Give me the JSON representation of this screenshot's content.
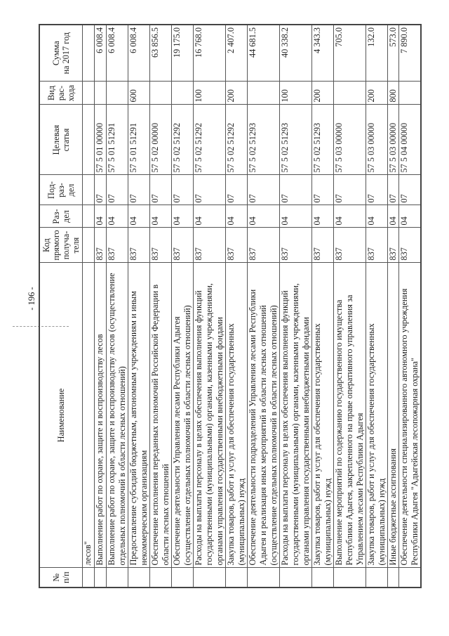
{
  "page_number": "- 196 -",
  "header": {
    "num": "№\nп/п",
    "name": "Наименование",
    "kod": "Код\nпрямого\nполуча-\nтеля",
    "razdel": "Раз-\nдел",
    "podrazdel": "Под-\nраз-\nдел",
    "celevaya": "Целевая\nстатья",
    "vid": "Вид\nрас-\nхода",
    "summa": "Сумма\nна 2017 год"
  },
  "rows": [
    {
      "num": "",
      "name": "лесов\"",
      "kod": "",
      "razdel": "",
      "podrazdel": "",
      "celevaya": "",
      "vid": "",
      "summa": ""
    },
    {
      "num": "",
      "name": "Выполнение работ по охране, защите и воспроизводству лесов",
      "kod": "837",
      "razdel": "04",
      "podrazdel": "07",
      "celevaya": "57 5 01 00000",
      "vid": "",
      "summa": "6 008.4"
    },
    {
      "num": "",
      "name": "Выполнение работ по охране, защите и воспроизводству лесов (осуществление\nотдельных полномочий в области лесных отношений)",
      "kod": "837",
      "razdel": "04",
      "podrazdel": "07",
      "celevaya": "57 5 01 51291",
      "vid": "",
      "summa": "6 008.4"
    },
    {
      "num": "",
      "name": "Предоставление субсидий бюджетным, автономным учреждениям и иным\nнекоммерческим организациям",
      "kod": "837",
      "razdel": "04",
      "podrazdel": "07",
      "celevaya": "57 5 01 51291",
      "vid": "600",
      "summa": "6 008.4"
    },
    {
      "num": "",
      "name": "Обеспечение исполнения переданных полномочий Российской Федерации в\nобласти лесных отношений",
      "kod": "837",
      "razdel": "04",
      "podrazdel": "07",
      "celevaya": "57 5 02 00000",
      "vid": "",
      "summa": "63 856.5"
    },
    {
      "num": "",
      "name": "Обеспечение деятельности Управления лесами Республики Адыгея\n(осуществление отдельных полномочий в области лесных отношений)",
      "kod": "837",
      "razdel": "04",
      "podrazdel": "07",
      "celevaya": "57 5 02 51292",
      "vid": "",
      "summa": "19 175.0"
    },
    {
      "num": "",
      "name": "Расходы на выплаты персоналу в целях обеспечения выполнения функций\nгосударственными (муниципальными) органами, казенными учреждениями,\nорганами управления государственными внебюджетными фондами",
      "kod": "837",
      "razdel": "04",
      "podrazdel": "07",
      "celevaya": "57 5 02 51292",
      "vid": "100",
      "summa": "16 768.0"
    },
    {
      "num": "",
      "name": "Закупка товаров, работ и услуг для обеспечения государственных\n(муниципальных) нужд",
      "kod": "837",
      "razdel": "04",
      "podrazdel": "07",
      "celevaya": "57 5 02 51292",
      "vid": "200",
      "summa": "2 407.0"
    },
    {
      "num": "",
      "name": "Обеспечение деятельности подразделений Управления лесами Республики\nАдыгея и реализация иных мероприятий в области лесных отношений\n(осуществление отдельных полномочий в области лесных отношений)",
      "kod": "837",
      "razdel": "04",
      "podrazdel": "07",
      "celevaya": "57 5 02 51293",
      "vid": "",
      "summa": "44 681.5"
    },
    {
      "num": "",
      "name": "Расходы на выплаты персоналу в целях обеспечения выполнения функций\nгосударственными (муниципальными) органами, казенными учреждениями,\nорганами управления государственными внебюджетными фондами",
      "kod": "837",
      "razdel": "04",
      "podrazdel": "07",
      "celevaya": "57 5 02 51293",
      "vid": "100",
      "summa": "40 338.2"
    },
    {
      "num": "",
      "name": "Закупка товаров, работ и услуг для обеспечения государственных\n(муниципальных) нужд",
      "kod": "837",
      "razdel": "04",
      "podrazdel": "07",
      "celevaya": "57 5 02 51293",
      "vid": "200",
      "summa": "4 343.3"
    },
    {
      "num": "",
      "name": "Выполнение мероприятий по содержанию государственного имущества\nРеспублики Адыгея, закрепленного на праве оперативного управления за\nУправлением лесами Республики Адыгея",
      "kod": "837",
      "razdel": "04",
      "podrazdel": "07",
      "celevaya": "57 5 03 00000",
      "vid": "",
      "summa": "705.0"
    },
    {
      "num": "",
      "name": "Закупка товаров, работ и услуг для обеспечения государственных\n(муниципальных) нужд",
      "kod": "837",
      "razdel": "04",
      "podrazdel": "07",
      "celevaya": "57 5 03 00000",
      "vid": "200",
      "summa": "132.0"
    },
    {
      "num": "",
      "name": "Иные бюджетные ассигнования",
      "kod": "837",
      "razdel": "04",
      "podrazdel": "07",
      "celevaya": "57 5 03 00000",
      "vid": "800",
      "summa": "573.0"
    },
    {
      "num": "",
      "name": "Обеспечение деятельности специализированного автономного учреждения\nРеспублики Адыгея \"Адыгейская лесопожарная охрана\"",
      "kod": "837",
      "razdel": "04",
      "podrazdel": "07",
      "celevaya": "57 5 04 00000",
      "vid": "",
      "summa": "7 890.0"
    }
  ]
}
